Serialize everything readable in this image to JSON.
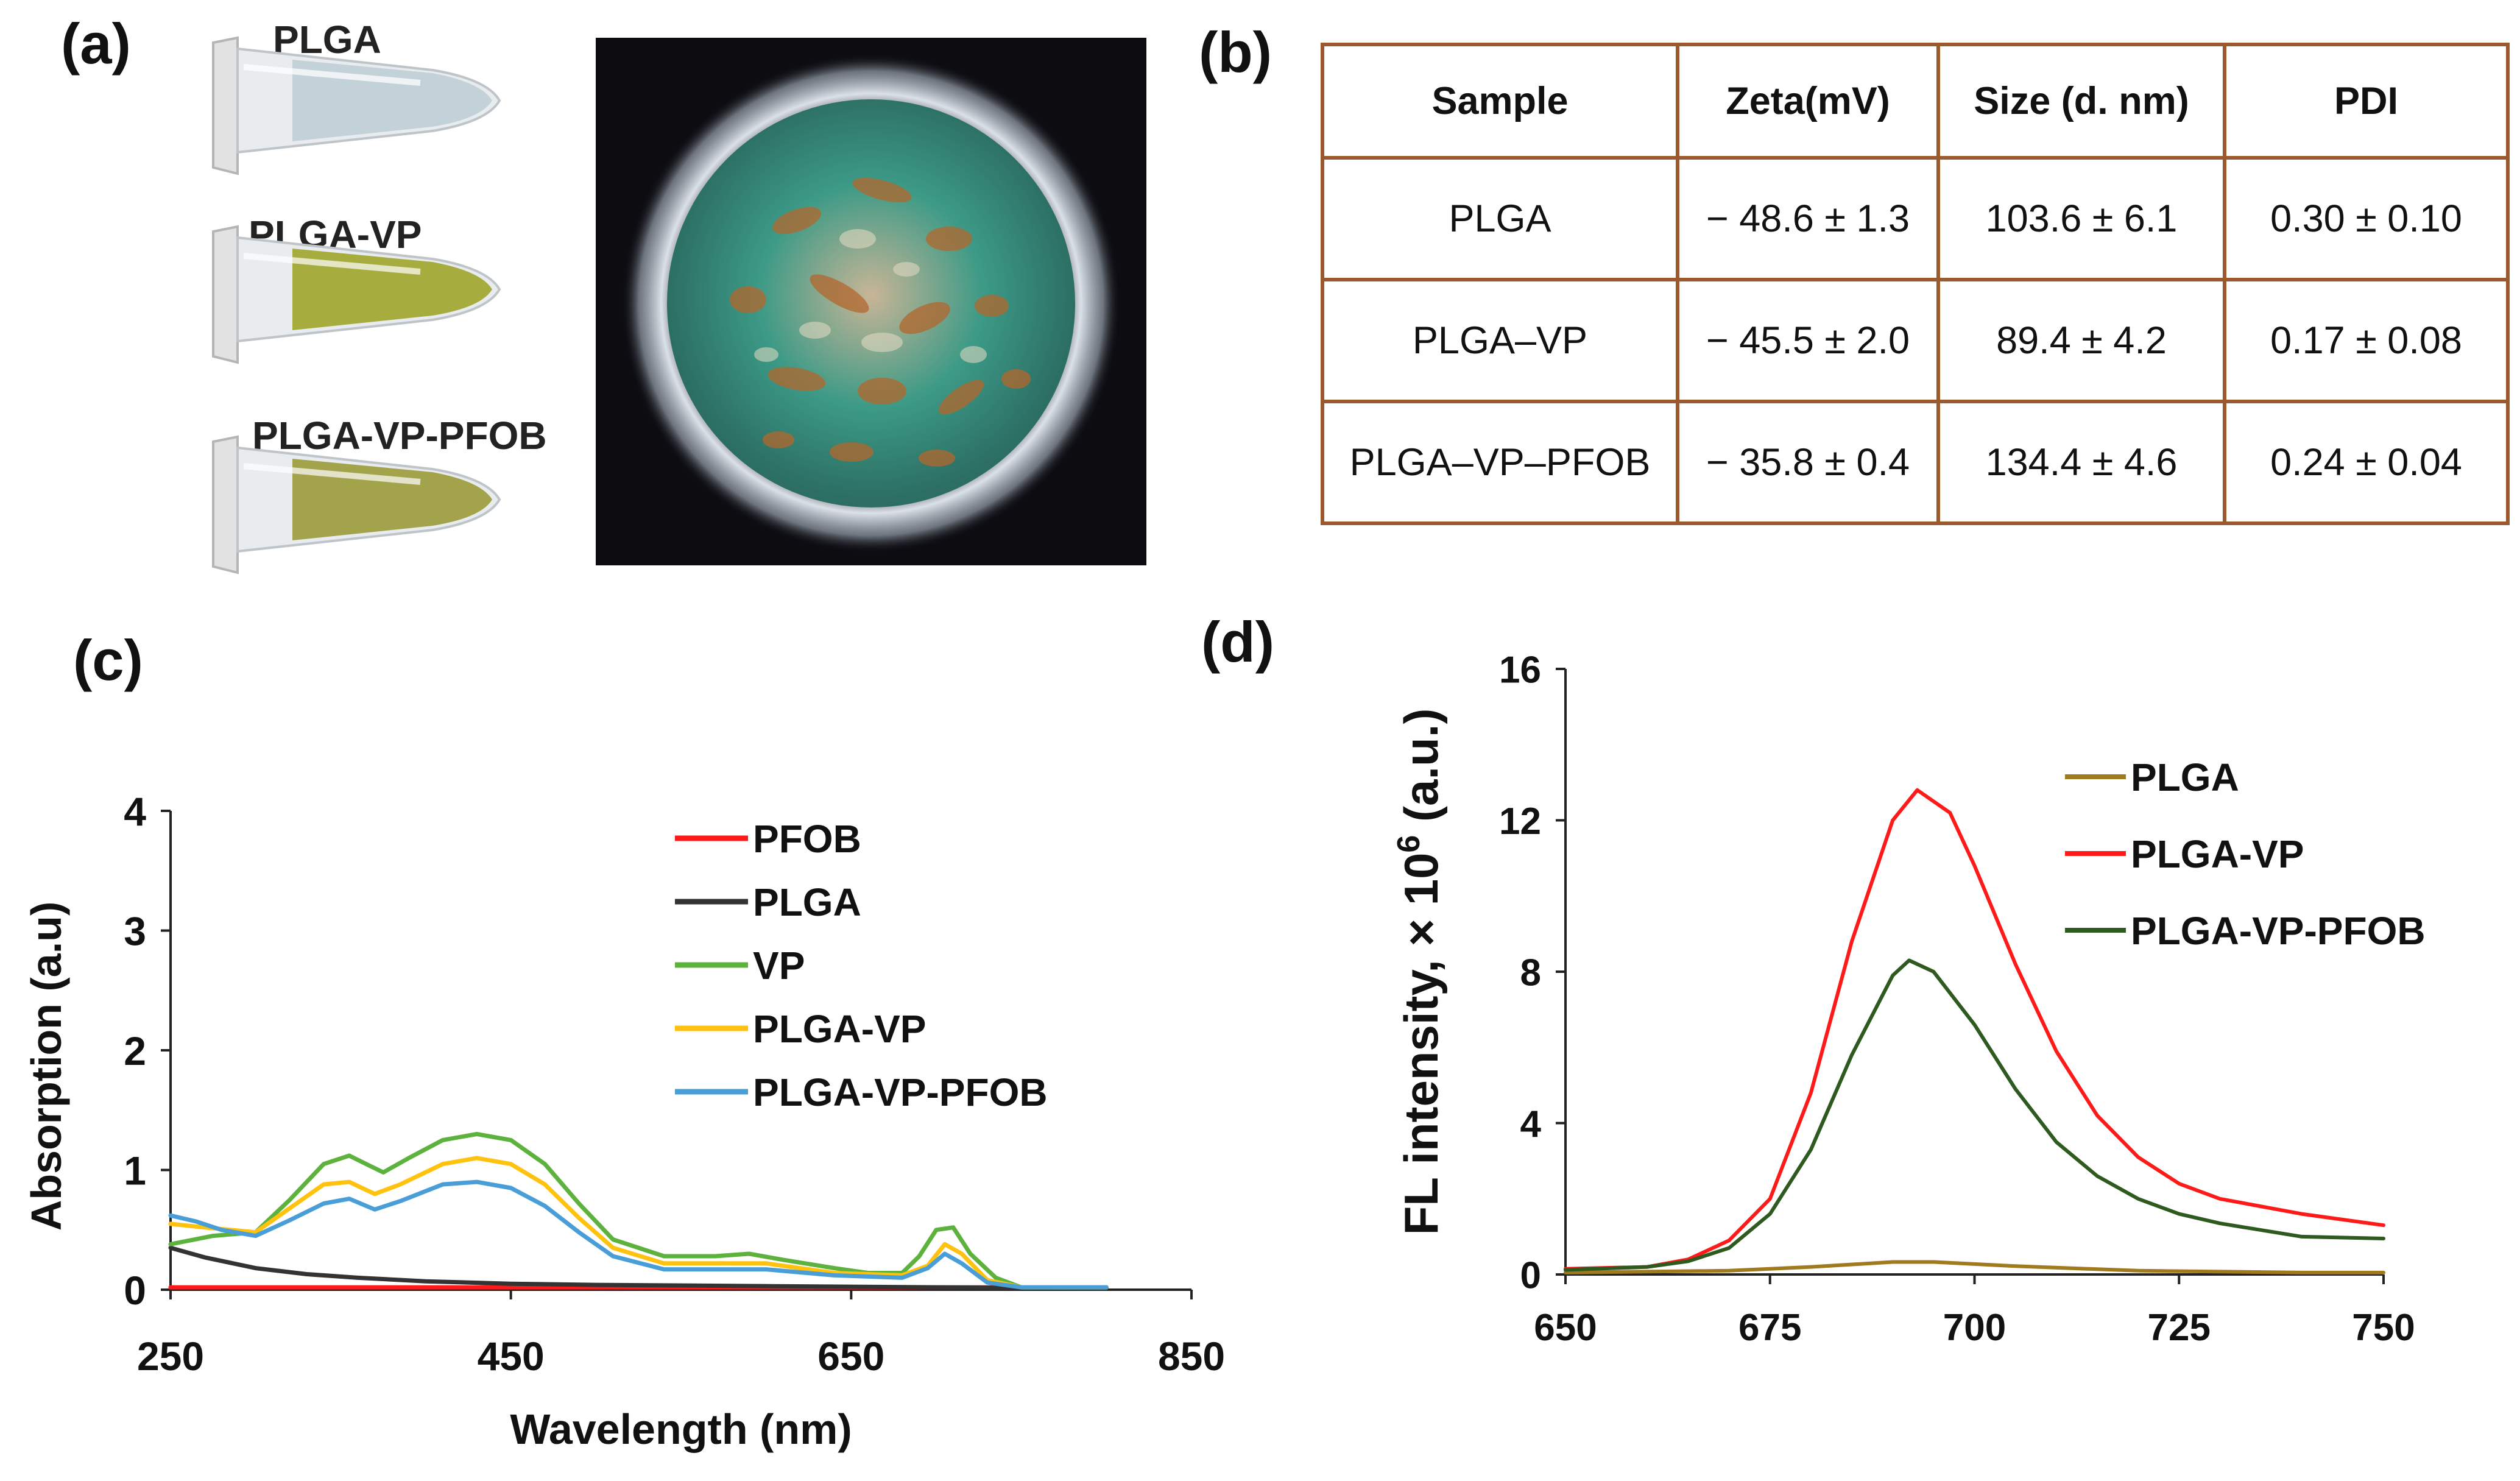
{
  "panel_labels": {
    "a": "(a)",
    "b": "(b)",
    "c": "(c)",
    "d": "(d)"
  },
  "tubes": [
    {
      "label": "PLGA",
      "liquid_color": "#c3d1d9"
    },
    {
      "label": "PLGA-VP",
      "liquid_color": "#a7ac3e"
    },
    {
      "label": "PLGA-VP-PFOB",
      "liquid_color": "#a2a34a"
    }
  ],
  "table": {
    "headers": [
      "Sample",
      "Zeta(mV)",
      "Size (d. nm)",
      "PDI"
    ],
    "rows": [
      [
        "PLGA",
        "− 48.6 ± 1.3",
        "103.6 ± 6.1",
        "0.30 ± 0.10"
      ],
      [
        "PLGA–VP",
        "− 45.5 ± 2.0",
        "89.4 ± 4.2",
        "0.17 ± 0.08"
      ],
      [
        "PLGA–VP–PFOB",
        "− 35.8 ± 0.4",
        "134.4 ± 4.6",
        "0.24 ± 0.04"
      ]
    ],
    "border_color": "#9b5a2e"
  },
  "chart_data": [
    {
      "id": "c",
      "type": "line",
      "xlabel": "Wavelength (nm)",
      "ylabel": "Absorption (a.u)",
      "xlim": [
        250,
        850
      ],
      "ylim": [
        0,
        4
      ],
      "xticks": [
        250,
        450,
        650,
        850
      ],
      "yticks": [
        0,
        1,
        2,
        3,
        4
      ],
      "legend_position": "top-right",
      "series": [
        {
          "name": "PFOB",
          "color": "#ff1a1a",
          "points": [
            [
              250,
              0.02
            ],
            [
              800,
              0.02
            ]
          ]
        },
        {
          "name": "PLGA",
          "color": "#333333",
          "points": [
            [
              250,
              0.35
            ],
            [
              270,
              0.27
            ],
            [
              300,
              0.18
            ],
            [
              330,
              0.13
            ],
            [
              360,
              0.1
            ],
            [
              400,
              0.07
            ],
            [
              450,
              0.05
            ],
            [
              500,
              0.04
            ],
            [
              600,
              0.03
            ],
            [
              700,
              0.02
            ],
            [
              800,
              0.01
            ]
          ]
        },
        {
          "name": "VP",
          "color": "#5cb23c",
          "points": [
            [
              250,
              0.38
            ],
            [
              275,
              0.45
            ],
            [
              300,
              0.48
            ],
            [
              320,
              0.75
            ],
            [
              340,
              1.05
            ],
            [
              355,
              1.12
            ],
            [
              365,
              1.05
            ],
            [
              375,
              0.98
            ],
            [
              390,
              1.1
            ],
            [
              410,
              1.25
            ],
            [
              430,
              1.3
            ],
            [
              450,
              1.25
            ],
            [
              470,
              1.05
            ],
            [
              490,
              0.72
            ],
            [
              510,
              0.42
            ],
            [
              540,
              0.28
            ],
            [
              570,
              0.28
            ],
            [
              590,
              0.3
            ],
            [
              610,
              0.25
            ],
            [
              640,
              0.18
            ],
            [
              660,
              0.14
            ],
            [
              680,
              0.14
            ],
            [
              690,
              0.28
            ],
            [
              700,
              0.5
            ],
            [
              710,
              0.52
            ],
            [
              720,
              0.3
            ],
            [
              735,
              0.1
            ],
            [
              750,
              0.02
            ],
            [
              800,
              0.02
            ]
          ]
        },
        {
          "name": "PLGA-VP",
          "color": "#ffc20e",
          "points": [
            [
              250,
              0.55
            ],
            [
              270,
              0.52
            ],
            [
              300,
              0.48
            ],
            [
              320,
              0.68
            ],
            [
              340,
              0.88
            ],
            [
              355,
              0.9
            ],
            [
              370,
              0.8
            ],
            [
              385,
              0.88
            ],
            [
              410,
              1.05
            ],
            [
              430,
              1.1
            ],
            [
              450,
              1.05
            ],
            [
              470,
              0.88
            ],
            [
              490,
              0.6
            ],
            [
              510,
              0.35
            ],
            [
              540,
              0.22
            ],
            [
              580,
              0.22
            ],
            [
              600,
              0.22
            ],
            [
              640,
              0.14
            ],
            [
              680,
              0.12
            ],
            [
              695,
              0.2
            ],
            [
              705,
              0.38
            ],
            [
              715,
              0.3
            ],
            [
              730,
              0.08
            ],
            [
              750,
              0.02
            ],
            [
              800,
              0.02
            ]
          ]
        },
        {
          "name": "PLGA-VP-PFOB",
          "color": "#4a9ed8",
          "points": [
            [
              250,
              0.62
            ],
            [
              265,
              0.57
            ],
            [
              280,
              0.5
            ],
            [
              300,
              0.45
            ],
            [
              320,
              0.58
            ],
            [
              340,
              0.72
            ],
            [
              355,
              0.76
            ],
            [
              370,
              0.67
            ],
            [
              385,
              0.74
            ],
            [
              410,
              0.88
            ],
            [
              430,
              0.9
            ],
            [
              450,
              0.85
            ],
            [
              470,
              0.7
            ],
            [
              490,
              0.48
            ],
            [
              510,
              0.28
            ],
            [
              540,
              0.17
            ],
            [
              580,
              0.17
            ],
            [
              600,
              0.17
            ],
            [
              640,
              0.12
            ],
            [
              680,
              0.1
            ],
            [
              695,
              0.18
            ],
            [
              705,
              0.3
            ],
            [
              715,
              0.22
            ],
            [
              730,
              0.06
            ],
            [
              750,
              0.02
            ],
            [
              800,
              0.02
            ]
          ]
        }
      ]
    },
    {
      "id": "d",
      "type": "line",
      "xlabel": "",
      "ylabel_prefix": "FL intensity, × 10",
      "ylabel_sup": "6",
      "ylabel_suffix": " (a.u.)",
      "xlim": [
        650,
        750
      ],
      "ylim": [
        0,
        16
      ],
      "xticks": [
        650,
        675,
        700,
        725,
        750
      ],
      "yticks": [
        0,
        4,
        8,
        12,
        16
      ],
      "legend_position": "top-right",
      "series": [
        {
          "name": "PLGA",
          "color": "#a07a1e",
          "points": [
            [
              650,
              0.05
            ],
            [
              670,
              0.1
            ],
            [
              680,
              0.2
            ],
            [
              690,
              0.33
            ],
            [
              695,
              0.33
            ],
            [
              705,
              0.22
            ],
            [
              720,
              0.1
            ],
            [
              740,
              0.05
            ],
            [
              750,
              0.05
            ]
          ]
        },
        {
          "name": "PLGA-VP",
          "color": "#ff1a1a",
          "points": [
            [
              650,
              0.15
            ],
            [
              660,
              0.2
            ],
            [
              665,
              0.4
            ],
            [
              670,
              0.9
            ],
            [
              675,
              2.0
            ],
            [
              680,
              4.8
            ],
            [
              685,
              8.8
            ],
            [
              690,
              12.0
            ],
            [
              693,
              12.8
            ],
            [
              697,
              12.2
            ],
            [
              700,
              10.8
            ],
            [
              705,
              8.2
            ],
            [
              710,
              5.9
            ],
            [
              715,
              4.2
            ],
            [
              720,
              3.1
            ],
            [
              725,
              2.4
            ],
            [
              730,
              2.0
            ],
            [
              740,
              1.6
            ],
            [
              750,
              1.3
            ]
          ]
        },
        {
          "name": "PLGA-VP-PFOB",
          "color": "#2e5a20",
          "points": [
            [
              650,
              0.12
            ],
            [
              660,
              0.2
            ],
            [
              665,
              0.35
            ],
            [
              670,
              0.7
            ],
            [
              675,
              1.6
            ],
            [
              680,
              3.3
            ],
            [
              685,
              5.8
            ],
            [
              690,
              7.9
            ],
            [
              692,
              8.3
            ],
            [
              695,
              8.0
            ],
            [
              700,
              6.6
            ],
            [
              705,
              4.9
            ],
            [
              710,
              3.5
            ],
            [
              715,
              2.6
            ],
            [
              720,
              2.0
            ],
            [
              725,
              1.6
            ],
            [
              730,
              1.35
            ],
            [
              740,
              1.0
            ],
            [
              750,
              0.95
            ]
          ]
        }
      ]
    }
  ]
}
